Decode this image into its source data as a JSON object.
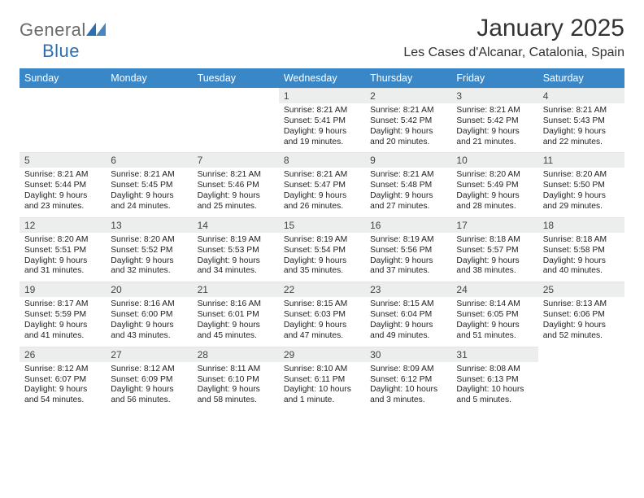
{
  "brand": {
    "general": "General",
    "blue": "Blue"
  },
  "title": "January 2025",
  "location": "Les Cases d'Alcanar, Catalonia, Spain",
  "colors": {
    "header_bg": "#3a87c8",
    "header_text": "#ffffff",
    "daynum_bg": "#eceded",
    "body_text": "#222222",
    "page_bg": "#ffffff",
    "logo_accent": "#2b6fb3"
  },
  "typography": {
    "title_fontsize": 30,
    "location_fontsize": 16,
    "weekday_fontsize": 12.5,
    "daynum_fontsize": 12,
    "body_fontsize": 10.3
  },
  "calendar": {
    "type": "table",
    "columns": [
      "Sunday",
      "Monday",
      "Tuesday",
      "Wednesday",
      "Thursday",
      "Friday",
      "Saturday"
    ],
    "weeks": [
      [
        {
          "day": "",
          "sunrise": "",
          "sunset": "",
          "daylight": ""
        },
        {
          "day": "",
          "sunrise": "",
          "sunset": "",
          "daylight": ""
        },
        {
          "day": "",
          "sunrise": "",
          "sunset": "",
          "daylight": ""
        },
        {
          "day": "1",
          "sunrise": "Sunrise: 8:21 AM",
          "sunset": "Sunset: 5:41 PM",
          "daylight": "Daylight: 9 hours and 19 minutes."
        },
        {
          "day": "2",
          "sunrise": "Sunrise: 8:21 AM",
          "sunset": "Sunset: 5:42 PM",
          "daylight": "Daylight: 9 hours and 20 minutes."
        },
        {
          "day": "3",
          "sunrise": "Sunrise: 8:21 AM",
          "sunset": "Sunset: 5:42 PM",
          "daylight": "Daylight: 9 hours and 21 minutes."
        },
        {
          "day": "4",
          "sunrise": "Sunrise: 8:21 AM",
          "sunset": "Sunset: 5:43 PM",
          "daylight": "Daylight: 9 hours and 22 minutes."
        }
      ],
      [
        {
          "day": "5",
          "sunrise": "Sunrise: 8:21 AM",
          "sunset": "Sunset: 5:44 PM",
          "daylight": "Daylight: 9 hours and 23 minutes."
        },
        {
          "day": "6",
          "sunrise": "Sunrise: 8:21 AM",
          "sunset": "Sunset: 5:45 PM",
          "daylight": "Daylight: 9 hours and 24 minutes."
        },
        {
          "day": "7",
          "sunrise": "Sunrise: 8:21 AM",
          "sunset": "Sunset: 5:46 PM",
          "daylight": "Daylight: 9 hours and 25 minutes."
        },
        {
          "day": "8",
          "sunrise": "Sunrise: 8:21 AM",
          "sunset": "Sunset: 5:47 PM",
          "daylight": "Daylight: 9 hours and 26 minutes."
        },
        {
          "day": "9",
          "sunrise": "Sunrise: 8:21 AM",
          "sunset": "Sunset: 5:48 PM",
          "daylight": "Daylight: 9 hours and 27 minutes."
        },
        {
          "day": "10",
          "sunrise": "Sunrise: 8:20 AM",
          "sunset": "Sunset: 5:49 PM",
          "daylight": "Daylight: 9 hours and 28 minutes."
        },
        {
          "day": "11",
          "sunrise": "Sunrise: 8:20 AM",
          "sunset": "Sunset: 5:50 PM",
          "daylight": "Daylight: 9 hours and 29 minutes."
        }
      ],
      [
        {
          "day": "12",
          "sunrise": "Sunrise: 8:20 AM",
          "sunset": "Sunset: 5:51 PM",
          "daylight": "Daylight: 9 hours and 31 minutes."
        },
        {
          "day": "13",
          "sunrise": "Sunrise: 8:20 AM",
          "sunset": "Sunset: 5:52 PM",
          "daylight": "Daylight: 9 hours and 32 minutes."
        },
        {
          "day": "14",
          "sunrise": "Sunrise: 8:19 AM",
          "sunset": "Sunset: 5:53 PM",
          "daylight": "Daylight: 9 hours and 34 minutes."
        },
        {
          "day": "15",
          "sunrise": "Sunrise: 8:19 AM",
          "sunset": "Sunset: 5:54 PM",
          "daylight": "Daylight: 9 hours and 35 minutes."
        },
        {
          "day": "16",
          "sunrise": "Sunrise: 8:19 AM",
          "sunset": "Sunset: 5:56 PM",
          "daylight": "Daylight: 9 hours and 37 minutes."
        },
        {
          "day": "17",
          "sunrise": "Sunrise: 8:18 AM",
          "sunset": "Sunset: 5:57 PM",
          "daylight": "Daylight: 9 hours and 38 minutes."
        },
        {
          "day": "18",
          "sunrise": "Sunrise: 8:18 AM",
          "sunset": "Sunset: 5:58 PM",
          "daylight": "Daylight: 9 hours and 40 minutes."
        }
      ],
      [
        {
          "day": "19",
          "sunrise": "Sunrise: 8:17 AM",
          "sunset": "Sunset: 5:59 PM",
          "daylight": "Daylight: 9 hours and 41 minutes."
        },
        {
          "day": "20",
          "sunrise": "Sunrise: 8:16 AM",
          "sunset": "Sunset: 6:00 PM",
          "daylight": "Daylight: 9 hours and 43 minutes."
        },
        {
          "day": "21",
          "sunrise": "Sunrise: 8:16 AM",
          "sunset": "Sunset: 6:01 PM",
          "daylight": "Daylight: 9 hours and 45 minutes."
        },
        {
          "day": "22",
          "sunrise": "Sunrise: 8:15 AM",
          "sunset": "Sunset: 6:03 PM",
          "daylight": "Daylight: 9 hours and 47 minutes."
        },
        {
          "day": "23",
          "sunrise": "Sunrise: 8:15 AM",
          "sunset": "Sunset: 6:04 PM",
          "daylight": "Daylight: 9 hours and 49 minutes."
        },
        {
          "day": "24",
          "sunrise": "Sunrise: 8:14 AM",
          "sunset": "Sunset: 6:05 PM",
          "daylight": "Daylight: 9 hours and 51 minutes."
        },
        {
          "day": "25",
          "sunrise": "Sunrise: 8:13 AM",
          "sunset": "Sunset: 6:06 PM",
          "daylight": "Daylight: 9 hours and 52 minutes."
        }
      ],
      [
        {
          "day": "26",
          "sunrise": "Sunrise: 8:12 AM",
          "sunset": "Sunset: 6:07 PM",
          "daylight": "Daylight: 9 hours and 54 minutes."
        },
        {
          "day": "27",
          "sunrise": "Sunrise: 8:12 AM",
          "sunset": "Sunset: 6:09 PM",
          "daylight": "Daylight: 9 hours and 56 minutes."
        },
        {
          "day": "28",
          "sunrise": "Sunrise: 8:11 AM",
          "sunset": "Sunset: 6:10 PM",
          "daylight": "Daylight: 9 hours and 58 minutes."
        },
        {
          "day": "29",
          "sunrise": "Sunrise: 8:10 AM",
          "sunset": "Sunset: 6:11 PM",
          "daylight": "Daylight: 10 hours and 1 minute."
        },
        {
          "day": "30",
          "sunrise": "Sunrise: 8:09 AM",
          "sunset": "Sunset: 6:12 PM",
          "daylight": "Daylight: 10 hours and 3 minutes."
        },
        {
          "day": "31",
          "sunrise": "Sunrise: 8:08 AM",
          "sunset": "Sunset: 6:13 PM",
          "daylight": "Daylight: 10 hours and 5 minutes."
        },
        {
          "day": "",
          "sunrise": "",
          "sunset": "",
          "daylight": ""
        }
      ]
    ]
  }
}
